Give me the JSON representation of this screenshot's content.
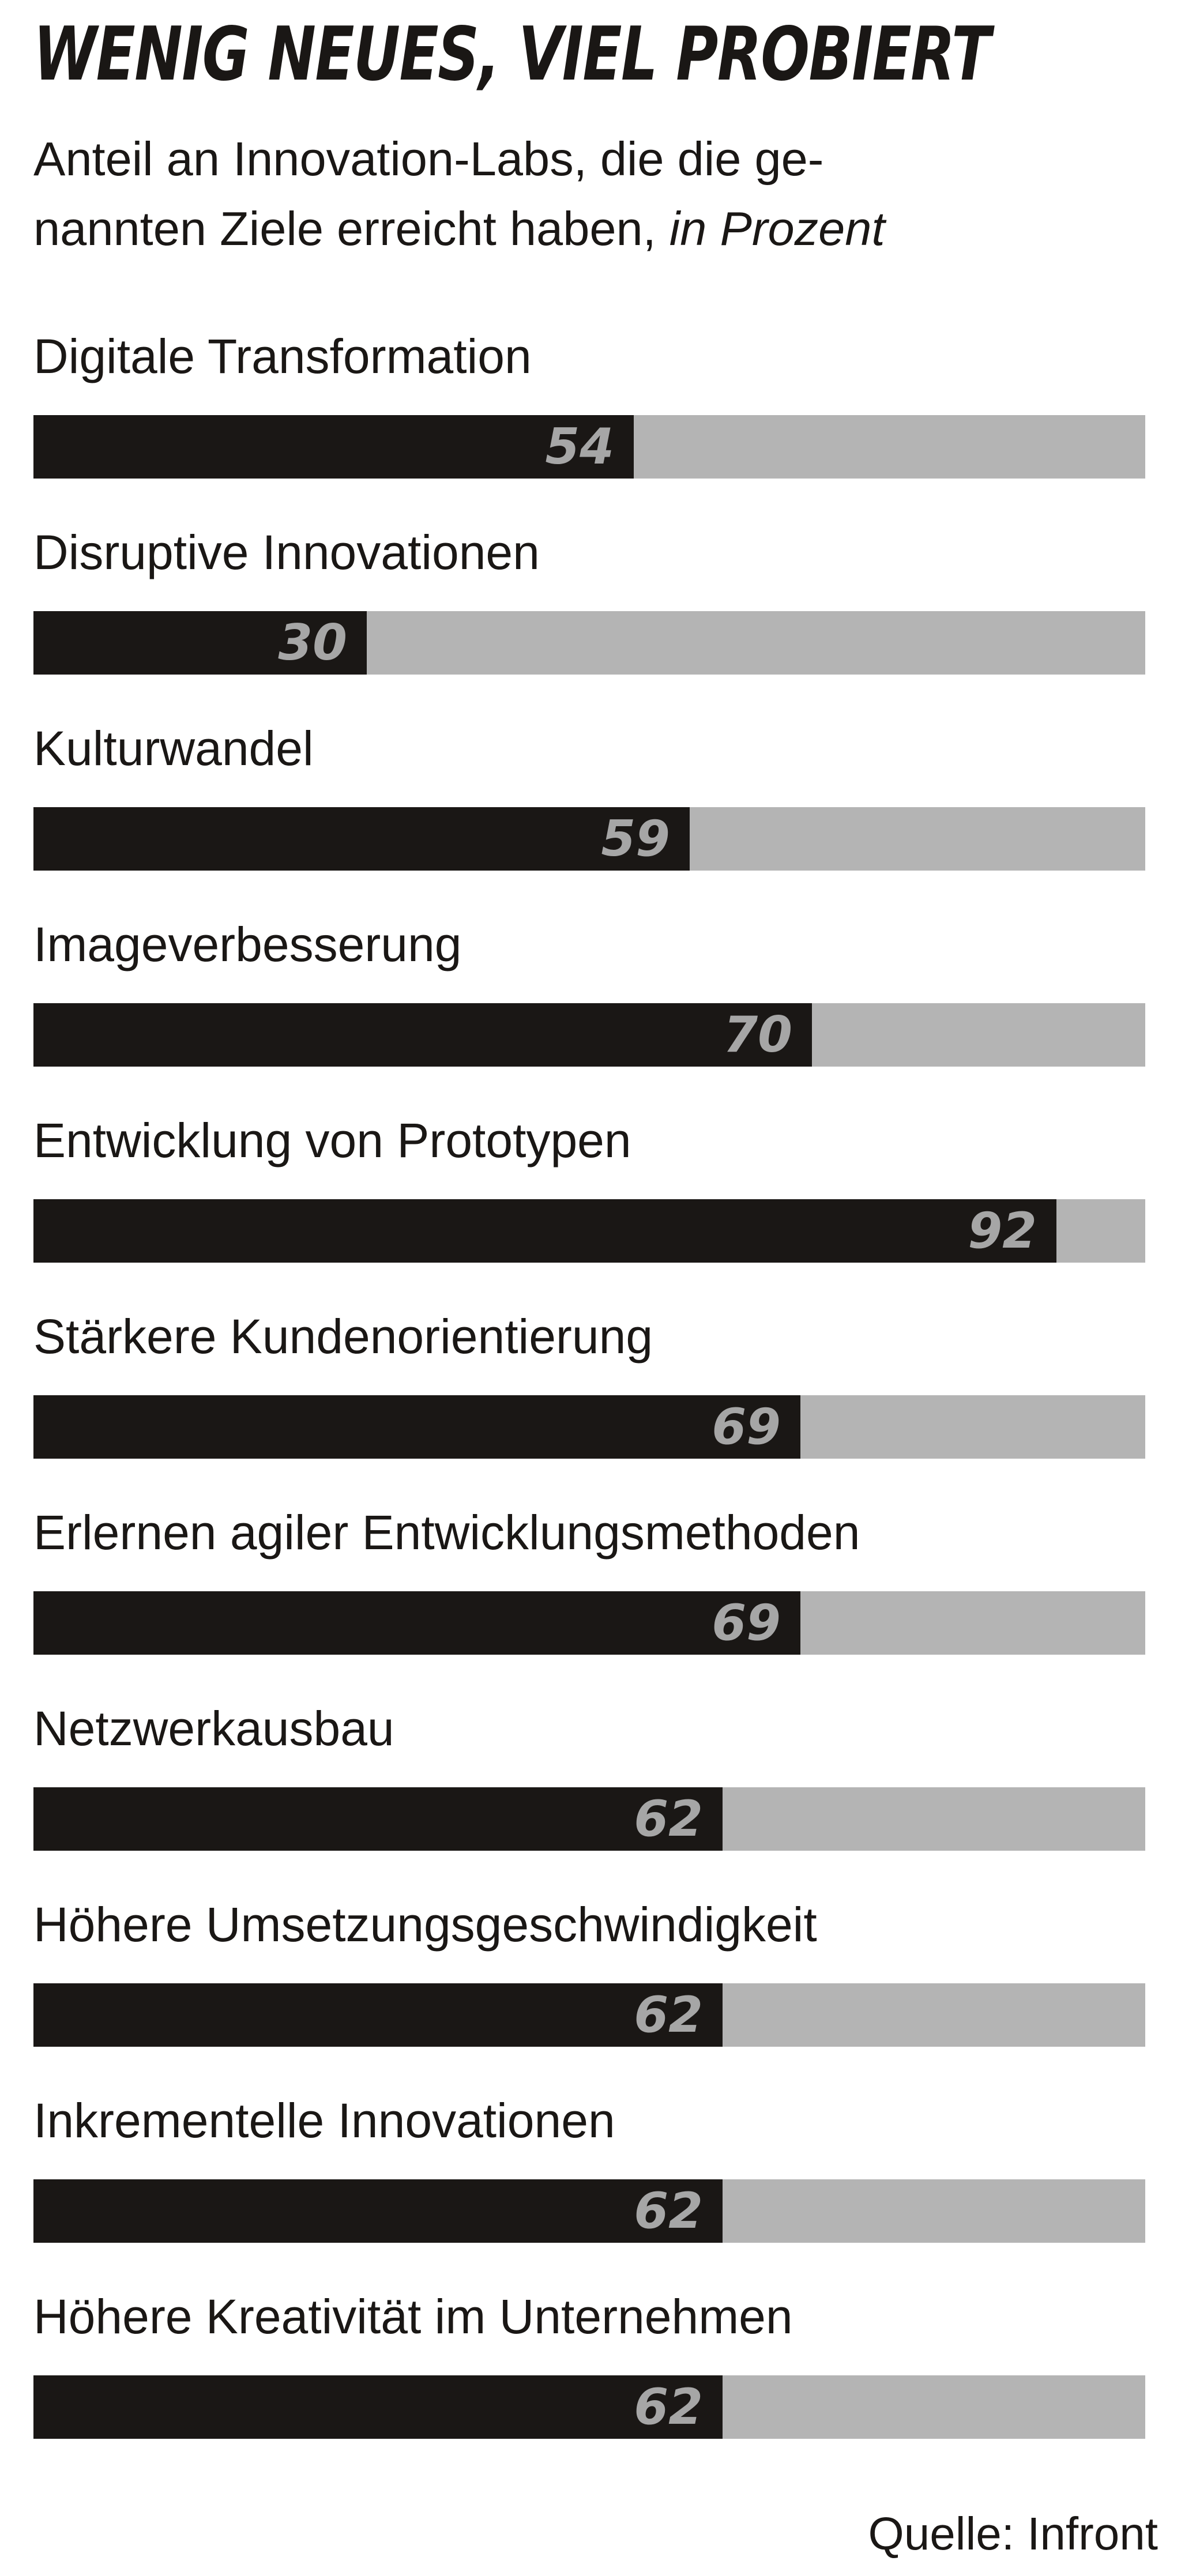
{
  "title": "WENIG NEUES, VIEL PROBIERT",
  "subtitle_line1": "Anteil an Innovation-Labs, die die ge-",
  "subtitle_line2": "nannten Ziele erreicht haben,",
  "subtitle_unit": "in Prozent",
  "source": "Quelle: Infront",
  "colors": {
    "bar": "#1a1715",
    "track": "#b4b4b4",
    "value_label": "#a6a6a6"
  },
  "chart_data": {
    "type": "bar",
    "orientation": "horizontal",
    "title": "WENIG NEUES, VIEL PROBIERT",
    "subtitle": "Anteil an Innovation-Labs, die die genannten Ziele erreicht haben, in Prozent",
    "xlim": [
      0,
      100
    ],
    "grid": false,
    "categories": [
      "Digitale Transformation",
      "Disruptive Innovationen",
      "Kulturwandel",
      "Imageverbesserung",
      "Entwicklung von Prototypen",
      "Stärkere Kundenorientierung",
      "Erlernen agiler Entwicklungsmethoden",
      "Netzwerkausbau",
      "Höhere Umsetzungsgeschwindigkeit",
      "Inkrementelle Innovationen",
      "Höhere Kreativität im Unternehmen"
    ],
    "values": [
      54,
      30,
      59,
      70,
      92,
      69,
      69,
      62,
      62,
      62,
      62
    ],
    "source": "Quelle: Infront"
  }
}
